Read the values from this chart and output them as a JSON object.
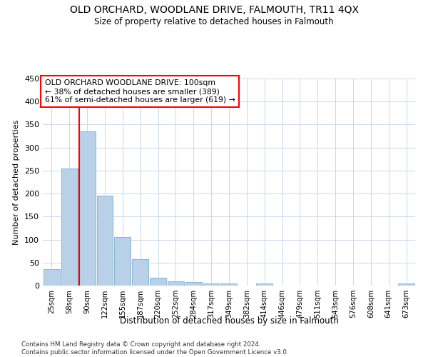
{
  "title": "OLD ORCHARD, WOODLANE DRIVE, FALMOUTH, TR11 4QX",
  "subtitle": "Size of property relative to detached houses in Falmouth",
  "xlabel": "Distribution of detached houses by size in Falmouth",
  "ylabel": "Number of detached properties",
  "bar_labels": [
    "25sqm",
    "58sqm",
    "90sqm",
    "122sqm",
    "155sqm",
    "187sqm",
    "220sqm",
    "252sqm",
    "284sqm",
    "317sqm",
    "349sqm",
    "382sqm",
    "414sqm",
    "446sqm",
    "479sqm",
    "511sqm",
    "543sqm",
    "576sqm",
    "608sqm",
    "641sqm",
    "673sqm"
  ],
  "bar_values": [
    35,
    255,
    335,
    195,
    105,
    57,
    17,
    10,
    7,
    5,
    4,
    0,
    4,
    0,
    0,
    0,
    0,
    0,
    0,
    0,
    4
  ],
  "bar_color": "#b8d0e8",
  "bar_edgecolor": "#7aafd0",
  "redline_bar_index": 2,
  "annotation_text": "OLD ORCHARD WOODLANE DRIVE: 100sqm\n← 38% of detached houses are smaller (389)\n61% of semi-detached houses are larger (619) →",
  "annotation_box_edgecolor": "red",
  "redline_color": "red",
  "ylim": [
    0,
    450
  ],
  "yticks": [
    0,
    50,
    100,
    150,
    200,
    250,
    300,
    350,
    400,
    450
  ],
  "footer": "Contains HM Land Registry data © Crown copyright and database right 2024.\nContains public sector information licensed under the Open Government Licence v3.0.",
  "bg_color": "#ffffff",
  "grid_color": "#c8d8ea"
}
